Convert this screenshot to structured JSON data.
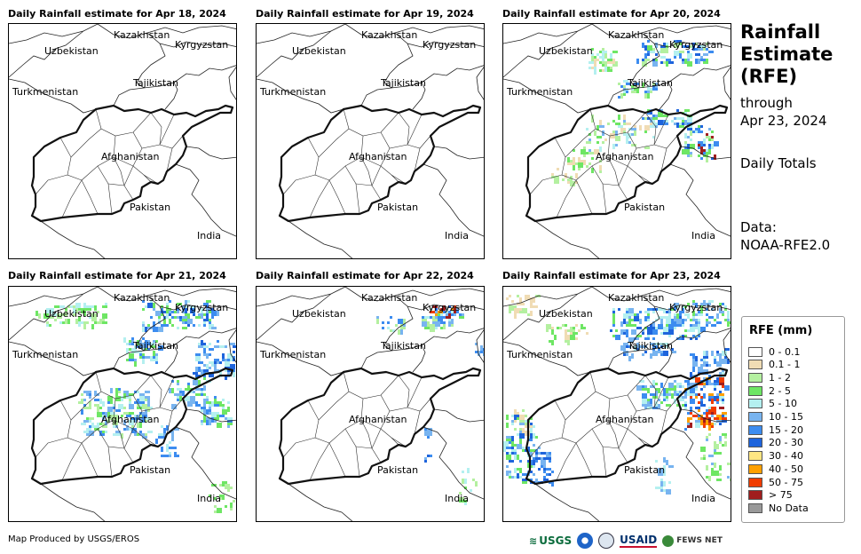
{
  "panels": [
    {
      "title": "Daily Rainfall estimate for Apr 18, 2024",
      "rain": "none"
    },
    {
      "title": "Daily Rainfall estimate for Apr 19, 2024",
      "rain": "none"
    },
    {
      "title": "Daily Rainfall estimate for Apr 20, 2024",
      "rain": "moderate"
    },
    {
      "title": "Daily Rainfall estimate for Apr 21, 2024",
      "rain": "widespread"
    },
    {
      "title": "Daily Rainfall estimate for Apr 22, 2024",
      "rain": "light"
    },
    {
      "title": "Daily Rainfall estimate for Apr 23, 2024",
      "rain": "heavy"
    }
  ],
  "map_labels": {
    "kazakhstan": "Kazakhstan",
    "kyrgyzstan": "Kyrgyzstan",
    "uzbekistan": "Uzbekistan",
    "tajikistan": "Tajikistan",
    "turkmenistan": "Turkmenistan",
    "afghanistan": "Afghanistan",
    "pakistan": "Pakistan",
    "india": "India"
  },
  "sidebar": {
    "title_line1": "Rainfall",
    "title_line2": "Estimate",
    "title_line3": "(RFE)",
    "through": "through",
    "date": "Apr 23, 2024",
    "totals": "Daily Totals",
    "data_label": "Data:",
    "data_source": "NOAA-RFE2.0"
  },
  "legend": {
    "title": "RFE (mm)",
    "items": [
      {
        "label": "0 - 0.1",
        "color": "#ffffff"
      },
      {
        "label": "0.1 - 1",
        "color": "#f0dcb4"
      },
      {
        "label": "1 - 2",
        "color": "#b4f0a0"
      },
      {
        "label": "2 - 5",
        "color": "#6ee664"
      },
      {
        "label": "5 - 10",
        "color": "#b4f0f0"
      },
      {
        "label": "10 - 15",
        "color": "#78b4f0"
      },
      {
        "label": "15 - 20",
        "color": "#3c8cf0"
      },
      {
        "label": "20 - 30",
        "color": "#1e64dc"
      },
      {
        "label": "30 - 40",
        "color": "#ffe682"
      },
      {
        "label": "40 - 50",
        "color": "#ffa000"
      },
      {
        "label": "50 - 75",
        "color": "#f03c00"
      },
      {
        "label": "> 75",
        "color": "#a01e1e"
      },
      {
        "label": "No Data",
        "color": "#999999"
      }
    ]
  },
  "footer": {
    "credit": "Map Produced by USGS/EROS"
  },
  "logos": {
    "usgs": "USGS",
    "usaid": "USAID",
    "fewsnet": "FEWS NET"
  }
}
